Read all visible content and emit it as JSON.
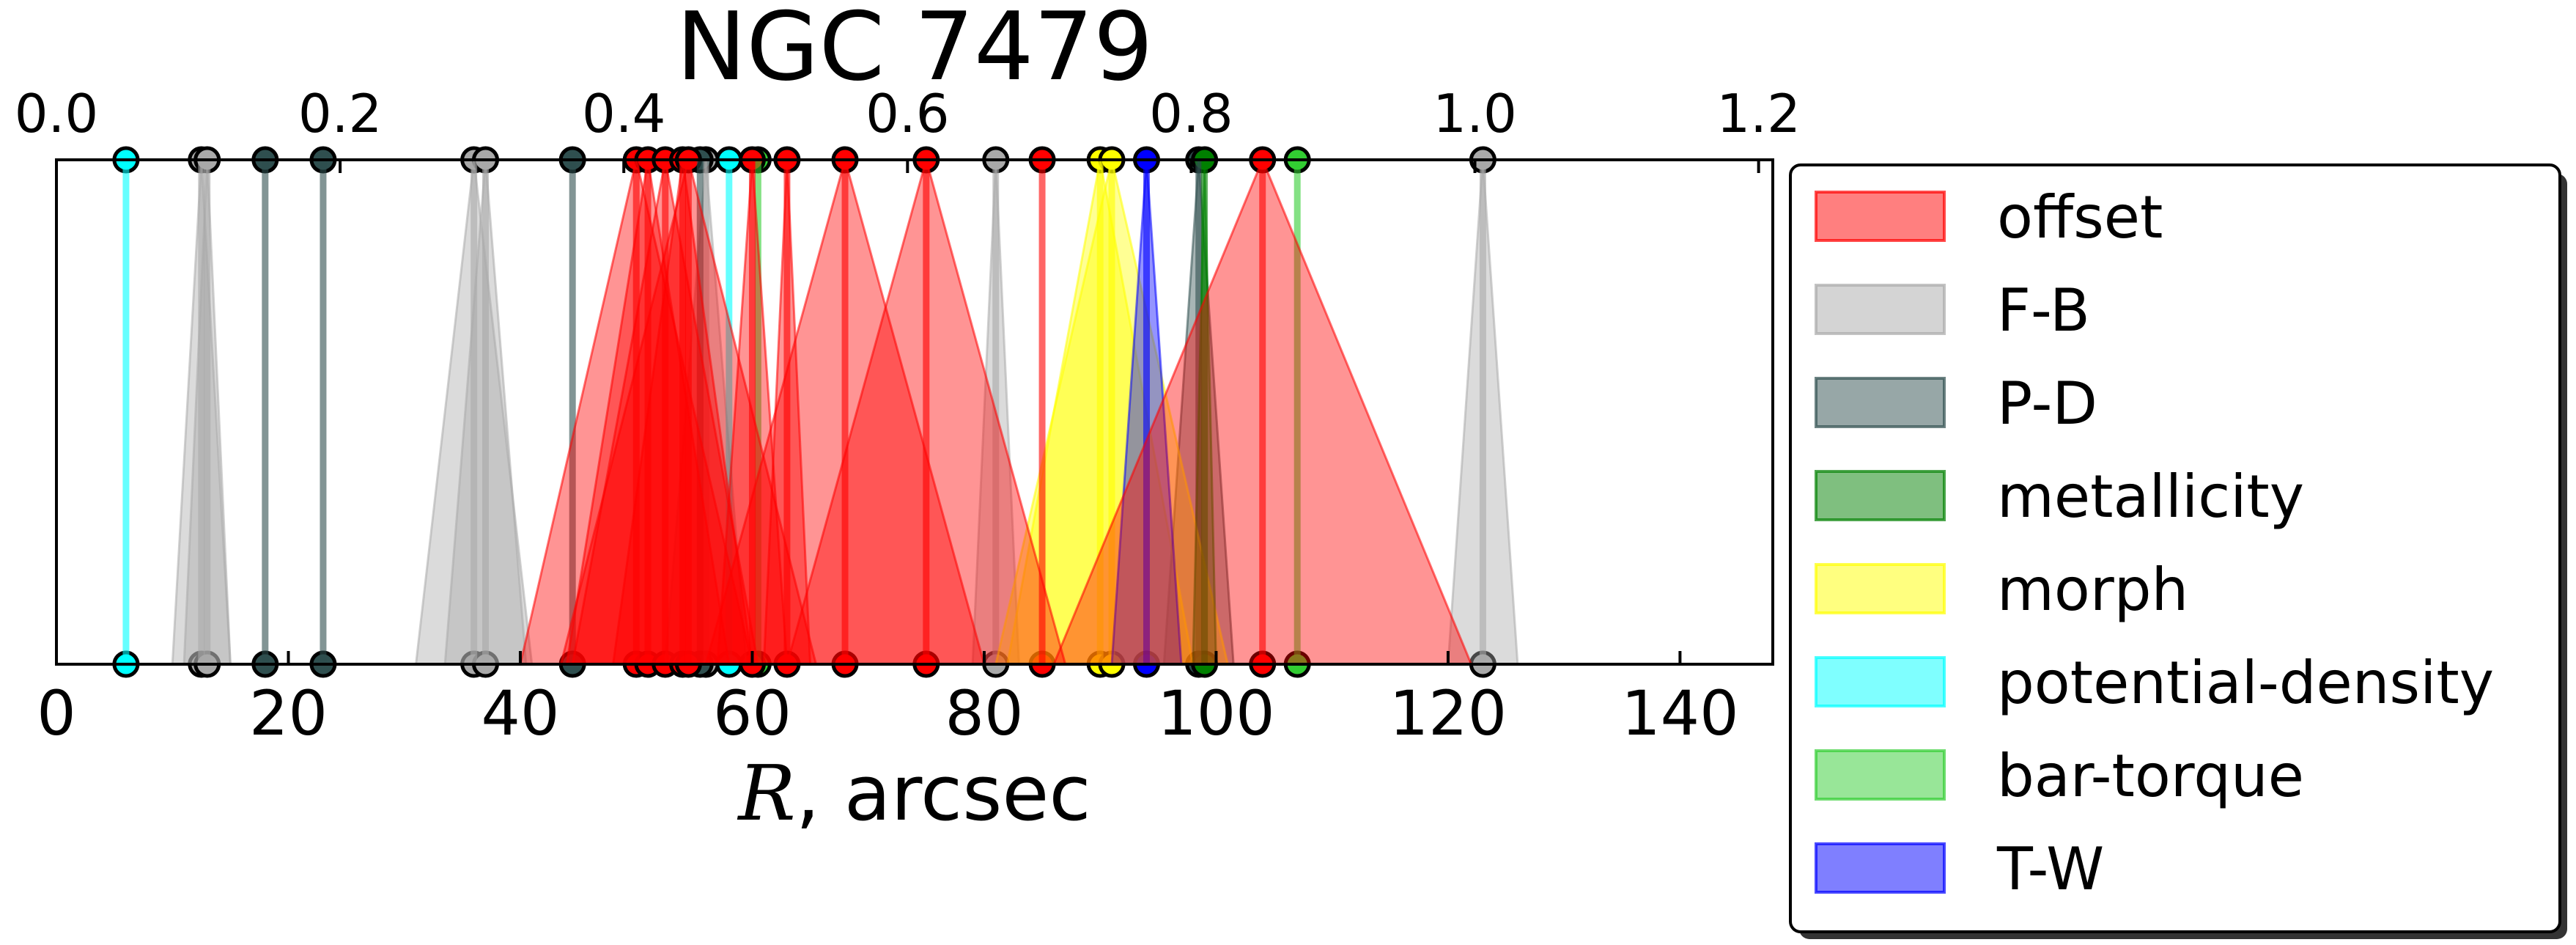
{
  "chart_data": {
    "type": "scatter",
    "title": "NGC 7479",
    "xlabel_math": "R",
    "xlabel_unit": ", arcsec",
    "xlim": [
      0,
      148
    ],
    "x_ticks": [
      0,
      20,
      40,
      60,
      80,
      100,
      120,
      140
    ],
    "x2lim": [
      0,
      1.21
    ],
    "x2_ticks": [
      "0.0",
      "0.2",
      "0.4",
      "0.6",
      "0.8",
      "1.0",
      "1.2"
    ],
    "x2_tick_values": [
      0.0,
      0.2,
      0.4,
      0.6,
      0.8,
      1.0,
      1.2
    ],
    "grid": false,
    "legend_position": "right",
    "colors": {
      "offset": "#ff0000",
      "F-B": "#a9a9a9",
      "P-D": "#2f4f4f",
      "metallicity": "#008000",
      "morph": "#ffff00",
      "potential-density": "#00ffff",
      "bar-torque": "#32cd32",
      "T-W": "#0000ff"
    },
    "legend": [
      {
        "key": "offset",
        "label": "offset"
      },
      {
        "key": "F-B",
        "label": "F-B"
      },
      {
        "key": "P-D",
        "label": "P-D"
      },
      {
        "key": "metallicity",
        "label": "metallicity"
      },
      {
        "key": "morph",
        "label": "morph"
      },
      {
        "key": "potential-density",
        "label": "potential-density"
      },
      {
        "key": "bar-torque",
        "label": "bar-torque"
      },
      {
        "key": "T-W",
        "label": "T-W"
      }
    ],
    "series": [
      {
        "key": "F-B",
        "points": [
          {
            "r": 12.5,
            "err": 2.5
          },
          {
            "r": 13,
            "err": 2
          },
          {
            "r": 36,
            "err": 5
          },
          {
            "r": 37,
            "err": 3.5
          },
          {
            "r": 56,
            "err": 3.5
          },
          {
            "r": 81,
            "err": 2
          },
          {
            "r": 123,
            "err": 3
          }
        ]
      },
      {
        "key": "P-D",
        "points": [
          {
            "r": 18,
            "err": 0
          },
          {
            "r": 23,
            "err": 0
          },
          {
            "r": 44.5,
            "err": 0
          },
          {
            "r": 55.5,
            "err": 0
          },
          {
            "r": 98.5,
            "err": 3
          }
        ]
      },
      {
        "key": "morph",
        "points": [
          {
            "r": 90,
            "err": 8
          },
          {
            "r": 91,
            "err": 10
          }
        ]
      },
      {
        "key": "T-W",
        "points": [
          {
            "r": 94,
            "err": 3
          }
        ]
      },
      {
        "key": "potential-density",
        "points": [
          {
            "r": 6,
            "err": 0
          },
          {
            "r": 58,
            "err": 0
          }
        ]
      },
      {
        "key": "bar-torque",
        "points": [
          {
            "r": 60.5,
            "err": 0
          },
          {
            "r": 107,
            "err": 0
          }
        ]
      },
      {
        "key": "metallicity",
        "points": [
          {
            "r": 99,
            "err": 1
          }
        ]
      },
      {
        "key": "offset",
        "points": [
          {
            "r": 50,
            "err": 10
          },
          {
            "r": 51,
            "err": 7
          },
          {
            "r": 52.5,
            "err": 8
          },
          {
            "r": 54,
            "err": 6
          },
          {
            "r": 54.5,
            "err": 11
          },
          {
            "r": 60,
            "err": 3
          },
          {
            "r": 63,
            "err": 2
          },
          {
            "r": 68,
            "err": 12
          },
          {
            "r": 75,
            "err": 12
          },
          {
            "r": 85,
            "err": 0
          },
          {
            "r": 104,
            "err": 18
          }
        ]
      }
    ]
  }
}
